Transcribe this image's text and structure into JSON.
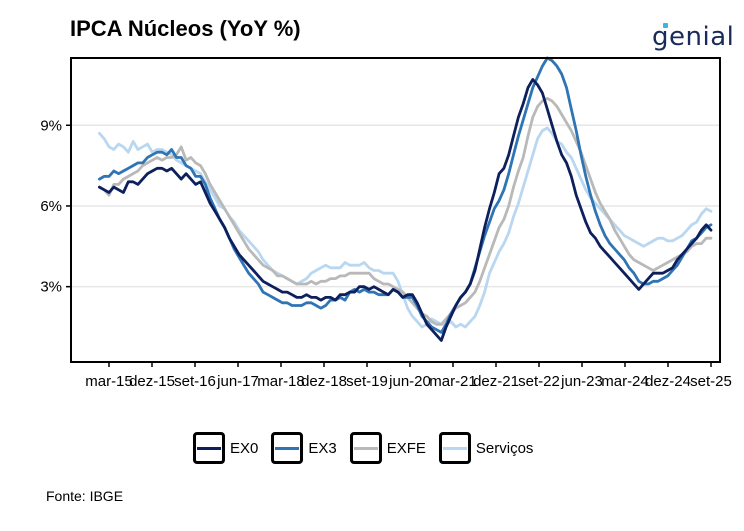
{
  "header": {
    "title": "IPCA Núcleos (YoY %)",
    "brand": "genial"
  },
  "footer": {
    "source": "Fonte: IBGE"
  },
  "chart_data": {
    "type": "line",
    "title": "IPCA Núcleos (YoY %)",
    "xlabel": "",
    "ylabel": "",
    "x_start": "2015-01",
    "x_ticks": [
      "mar-15",
      "dez-15",
      "set-16",
      "jun-17",
      "mar-18",
      "dez-18",
      "set-19",
      "jun-20",
      "mar-21",
      "dez-21",
      "set-22",
      "jun-23",
      "mar-24",
      "dez-24",
      "set-25"
    ],
    "y_ticks": [
      "3%",
      "6%",
      "9%"
    ],
    "y_tick_values": [
      3,
      6,
      9
    ],
    "ylim": [
      0.2,
      11.5
    ],
    "grid": "horizontal",
    "legend_position": "bottom",
    "series": [
      {
        "name": "EX0",
        "color": "#0d1f5c",
        "values": [
          6.7,
          6.6,
          6.5,
          6.7,
          6.6,
          6.5,
          6.9,
          6.9,
          6.8,
          7.0,
          7.2,
          7.3,
          7.4,
          7.4,
          7.3,
          7.4,
          7.2,
          7.0,
          7.2,
          7.0,
          6.8,
          6.9,
          6.5,
          6.1,
          5.8,
          5.5,
          5.2,
          4.8,
          4.5,
          4.2,
          4.0,
          3.8,
          3.6,
          3.4,
          3.2,
          3.1,
          3.0,
          2.9,
          2.8,
          2.8,
          2.7,
          2.6,
          2.6,
          2.7,
          2.6,
          2.6,
          2.5,
          2.6,
          2.6,
          2.5,
          2.7,
          2.7,
          2.8,
          2.8,
          3.0,
          3.0,
          2.9,
          3.0,
          2.9,
          2.8,
          2.7,
          2.9,
          2.8,
          2.6,
          2.7,
          2.7,
          2.4,
          2.0,
          1.6,
          1.4,
          1.2,
          1.0,
          1.5,
          1.9,
          2.3,
          2.6,
          2.8,
          3.1,
          3.6,
          4.4,
          5.2,
          5.9,
          6.5,
          7.2,
          7.4,
          7.9,
          8.6,
          9.3,
          9.8,
          10.4,
          10.7,
          10.5,
          10.2,
          9.6,
          9.0,
          8.4,
          7.9,
          7.6,
          7.1,
          6.4,
          5.9,
          5.4,
          5.0,
          4.8,
          4.5,
          4.3,
          4.1,
          3.9,
          3.7,
          3.5,
          3.3,
          3.1,
          2.9,
          3.1,
          3.3,
          3.5,
          3.5,
          3.5,
          3.6,
          3.7,
          4.0,
          4.2,
          4.4,
          4.6,
          4.8,
          5.1,
          5.3,
          5.1
        ]
      },
      {
        "name": "EX3",
        "color": "#2f74b5",
        "values": [
          7.0,
          7.1,
          7.1,
          7.3,
          7.2,
          7.3,
          7.4,
          7.5,
          7.6,
          7.6,
          7.8,
          7.9,
          8.0,
          8.0,
          7.9,
          8.1,
          7.8,
          7.8,
          7.5,
          7.4,
          7.1,
          7.1,
          6.8,
          6.3,
          5.9,
          5.5,
          5.2,
          4.8,
          4.4,
          4.1,
          3.8,
          3.5,
          3.3,
          3.1,
          2.8,
          2.7,
          2.6,
          2.5,
          2.4,
          2.4,
          2.3,
          2.3,
          2.3,
          2.4,
          2.4,
          2.3,
          2.2,
          2.3,
          2.5,
          2.5,
          2.6,
          2.5,
          2.8,
          2.9,
          2.8,
          2.9,
          2.8,
          2.8,
          2.7,
          2.7,
          2.7,
          2.9,
          2.8,
          2.6,
          2.6,
          2.6,
          2.3,
          1.9,
          1.7,
          1.5,
          1.4,
          1.3,
          1.6,
          2.0,
          2.3,
          2.6,
          2.8,
          3.1,
          3.7,
          4.3,
          4.9,
          5.4,
          5.9,
          6.2,
          6.6,
          7.2,
          7.9,
          8.6,
          9.2,
          9.8,
          10.4,
          10.8,
          11.2,
          11.5,
          11.4,
          11.2,
          10.9,
          10.4,
          9.6,
          8.8,
          7.9,
          7.1,
          6.4,
          5.8,
          5.3,
          4.9,
          4.6,
          4.4,
          4.2,
          4.0,
          3.7,
          3.5,
          3.2,
          3.1,
          3.1,
          3.2,
          3.2,
          3.3,
          3.4,
          3.6,
          3.8,
          4.1,
          4.4,
          4.7,
          4.8,
          5.0,
          5.2,
          5.3
        ]
      },
      {
        "name": "EXFE",
        "color": "#b9b9b9",
        "values": [
          6.7,
          6.6,
          6.4,
          6.8,
          6.8,
          7.0,
          7.1,
          7.2,
          7.3,
          7.5,
          7.6,
          7.7,
          7.8,
          7.7,
          7.8,
          7.8,
          7.9,
          8.2,
          7.7,
          7.8,
          7.6,
          7.5,
          7.2,
          6.8,
          6.5,
          6.2,
          5.9,
          5.6,
          5.3,
          5.0,
          4.7,
          4.4,
          4.2,
          4.0,
          3.8,
          3.7,
          3.6,
          3.4,
          3.4,
          3.3,
          3.2,
          3.1,
          3.1,
          3.1,
          3.2,
          3.1,
          3.2,
          3.2,
          3.3,
          3.3,
          3.4,
          3.4,
          3.5,
          3.5,
          3.5,
          3.5,
          3.5,
          3.3,
          3.2,
          3.1,
          3.1,
          3.0,
          2.9,
          2.8,
          2.6,
          2.4,
          2.2,
          2.0,
          1.9,
          1.7,
          1.6,
          1.6,
          1.8,
          2.0,
          2.2,
          2.3,
          2.4,
          2.6,
          2.8,
          3.2,
          3.7,
          4.2,
          4.7,
          5.2,
          5.5,
          6.0,
          6.7,
          7.3,
          7.8,
          8.6,
          9.3,
          9.7,
          9.9,
          10.0,
          9.9,
          9.7,
          9.4,
          9.1,
          8.8,
          8.4,
          8.0,
          7.5,
          7.0,
          6.5,
          6.1,
          5.8,
          5.5,
          5.1,
          4.8,
          4.5,
          4.2,
          4.0,
          3.9,
          3.8,
          3.7,
          3.6,
          3.7,
          3.8,
          3.9,
          4.0,
          4.1,
          4.2,
          4.3,
          4.5,
          4.6,
          4.6,
          4.8,
          4.8
        ]
      },
      {
        "name": "Serviços",
        "color": "#b9d7f0",
        "values": [
          8.7,
          8.5,
          8.2,
          8.1,
          8.3,
          8.2,
          8.0,
          8.4,
          8.1,
          8.2,
          8.3,
          8.0,
          8.1,
          8.1,
          8.0,
          7.9,
          7.7,
          7.6,
          7.5,
          7.4,
          7.3,
          7.2,
          6.9,
          6.6,
          6.3,
          6.0,
          5.9,
          5.6,
          5.4,
          5.1,
          4.9,
          4.7,
          4.5,
          4.3,
          4.0,
          3.8,
          3.6,
          3.5,
          3.4,
          3.3,
          3.2,
          3.1,
          3.2,
          3.3,
          3.5,
          3.6,
          3.7,
          3.8,
          3.7,
          3.7,
          3.7,
          3.9,
          3.8,
          3.8,
          3.8,
          3.9,
          3.7,
          3.6,
          3.6,
          3.5,
          3.5,
          3.5,
          3.2,
          2.7,
          2.2,
          1.9,
          1.7,
          1.5,
          1.6,
          1.8,
          1.7,
          1.6,
          1.6,
          1.7,
          1.5,
          1.6,
          1.5,
          1.7,
          1.9,
          2.3,
          2.8,
          3.5,
          3.9,
          4.3,
          4.6,
          5.0,
          5.6,
          6.1,
          6.7,
          7.3,
          7.9,
          8.5,
          8.8,
          8.9,
          8.7,
          8.4,
          8.3,
          8.0,
          7.8,
          7.4,
          7.0,
          6.6,
          6.3,
          6.1,
          5.9,
          5.7,
          5.5,
          5.3,
          5.1,
          4.9,
          4.8,
          4.7,
          4.6,
          4.5,
          4.6,
          4.7,
          4.8,
          4.8,
          4.7,
          4.7,
          4.8,
          4.9,
          5.1,
          5.3,
          5.4,
          5.7,
          5.9,
          5.8
        ]
      }
    ]
  }
}
